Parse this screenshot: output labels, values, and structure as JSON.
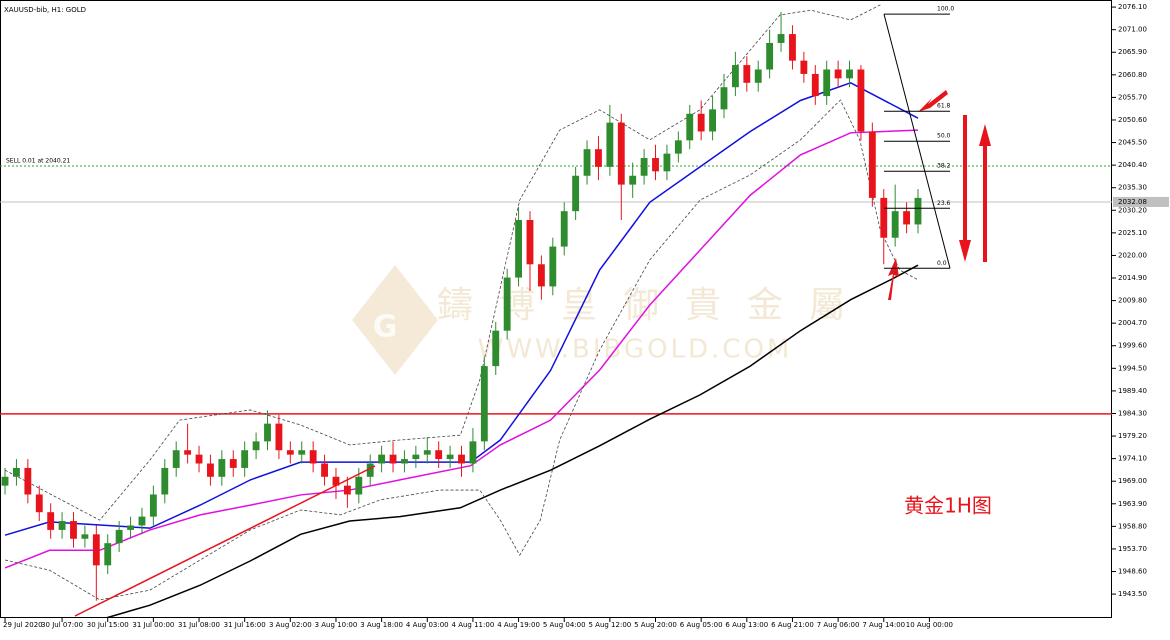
{
  "chart_data": {
    "type": "candlestick",
    "title": "XAUUSD-bib, H1:  GOLD",
    "xlim": [
      -0.44,
      97
    ],
    "ylim": [
      1938.1,
      2077.7
    ],
    "xticks": [
      {
        "value": 0,
        "label": "29 Jul 2020"
      },
      {
        "value": 5,
        "label": "30 Jul 07:00"
      },
      {
        "value": 9,
        "label": "30 Jul 15:00"
      },
      {
        "value": 13,
        "label": "31 Jul 00:00"
      },
      {
        "value": 17,
        "label": "31 Jul 08:00"
      },
      {
        "value": 21,
        "label": "31 Jul 16:00"
      },
      {
        "value": 25,
        "label": "3 Aug 02:00"
      },
      {
        "value": 29,
        "label": "3 Aug 10:00"
      },
      {
        "value": 33,
        "label": "3 Aug 18:00"
      },
      {
        "value": 37,
        "label": "4 Aug 03:00"
      },
      {
        "value": 41,
        "label": "4 Aug 11:00"
      },
      {
        "value": 45,
        "label": "4 Aug 19:00"
      },
      {
        "value": 49,
        "label": "5 Aug 04:00"
      },
      {
        "value": 53,
        "label": "5 Aug 12:00"
      },
      {
        "value": 57,
        "label": "5 Aug 20:00"
      },
      {
        "value": 61,
        "label": "6 Aug 05:00"
      },
      {
        "value": 65,
        "label": "6 Aug 13:00"
      },
      {
        "value": 69,
        "label": "6 Aug 21:00"
      },
      {
        "value": 73,
        "label": "7 Aug 06:00"
      },
      {
        "value": 77,
        "label": "7 Aug 14:00"
      },
      {
        "value": 81,
        "label": "10 Aug 00:00"
      }
    ],
    "yticks": [
      {
        "value": 2076.1,
        "label": "2076.10"
      },
      {
        "value": 2071,
        "label": "2071.00"
      },
      {
        "value": 2065.9,
        "label": "2065.90"
      },
      {
        "value": 2060.8,
        "label": "2060.80"
      },
      {
        "value": 2055.7,
        "label": "2055.70"
      },
      {
        "value": 2050.6,
        "label": "2050.60"
      },
      {
        "value": 2045.5,
        "label": "2045.50"
      },
      {
        "value": 2040.4,
        "label": "2040.40"
      },
      {
        "value": 2035.3,
        "label": "2035.30"
      },
      {
        "value": 2030.2,
        "label": "2030.20"
      },
      {
        "value": 2025.1,
        "label": "2025.10"
      },
      {
        "value": 2020,
        "label": "2020.00"
      },
      {
        "value": 2014.9,
        "label": "2014.90"
      },
      {
        "value": 2009.8,
        "label": "2009.80"
      },
      {
        "value": 2004.7,
        "label": "2004.70"
      },
      {
        "value": 1999.6,
        "label": "1999.60"
      },
      {
        "value": 1994.5,
        "label": "1994.50"
      },
      {
        "value": 1989.4,
        "label": "1989.40"
      },
      {
        "value": 1984.3,
        "label": "1984.30"
      },
      {
        "value": 1979.2,
        "label": "1979.20"
      },
      {
        "value": 1974.1,
        "label": "1974.10"
      },
      {
        "value": 1969,
        "label": "1969.00"
      },
      {
        "value": 1963.9,
        "label": "1963.90"
      },
      {
        "value": 1958.8,
        "label": "1958.80"
      },
      {
        "value": 1953.7,
        "label": "1953.70"
      },
      {
        "value": 1948.6,
        "label": "1948.60"
      },
      {
        "value": 1943.5,
        "label": "1943.50"
      }
    ],
    "up_color": "#2e8b2e",
    "down_color": "#e8141c",
    "open": [
      1968,
      1970,
      1972,
      1966,
      1962,
      1958,
      1960,
      1956,
      1957,
      1950,
      1955,
      1958,
      1959,
      1961,
      1966,
      1972,
      1976,
      1975,
      1973,
      1970,
      1974,
      1972,
      1976,
      1978,
      1982,
      1976,
      1975,
      1976,
      1973,
      1970,
      1968,
      1966,
      1970,
      1973,
      1975,
      1973,
      1974,
      1975,
      1976,
      1974,
      1975,
      1973,
      1978,
      1995,
      2003,
      2015,
      2028,
      2018,
      2013,
      2022,
      2030,
      2038,
      2044,
      2040,
      2050,
      2036,
      2038,
      2042,
      2039,
      2043,
      2046,
      2052,
      2048,
      2053,
      2058,
      2063,
      2059,
      2062,
      2068,
      2070,
      2064,
      2061,
      2056,
      2062,
      2060,
      2062,
      2048,
      2033,
      2024,
      2030,
      2027
    ],
    "high": [
      1972,
      1974,
      1974,
      1968,
      1964,
      1962,
      1962,
      1959,
      1959,
      1957,
      1960,
      1961,
      1963,
      1968,
      1974,
      1978,
      1982,
      1977,
      1975,
      1976,
      1976,
      1978,
      1980,
      1985,
      1984,
      1978,
      1978,
      1978,
      1975,
      1972,
      1970,
      1972,
      1975,
      1977,
      1978,
      1976,
      1977,
      1979,
      1978,
      1977,
      1977,
      1981,
      1997,
      2005,
      2017,
      2031,
      2030,
      2020,
      2024,
      2032,
      2040,
      2046,
      2047,
      2054,
      2052,
      2041,
      2044,
      2045,
      2045,
      2048,
      2054,
      2055,
      2056,
      2061,
      2066,
      2065,
      2064,
      2071,
      2075,
      2072,
      2066,
      2063,
      2064,
      2064,
      2064,
      2063,
      2050,
      2035,
      2036,
      2032,
      2035
    ],
    "low": [
      1966,
      1968,
      1964,
      1960,
      1956,
      1956,
      1954,
      1954,
      1942,
      1948,
      1953,
      1956,
      1957,
      1959,
      1964,
      1970,
      1973,
      1971,
      1968,
      1968,
      1970,
      1970,
      1974,
      1976,
      1974,
      1973,
      1973,
      1971,
      1968,
      1965,
      1963,
      1964,
      1968,
      1971,
      1971,
      1971,
      1972,
      1973,
      1972,
      1972,
      1970,
      1971,
      1976,
      1993,
      2001,
      2013,
      2012,
      2010,
      2011,
      2020,
      2028,
      2036,
      2037,
      2038,
      2028,
      2033,
      2036,
      2037,
      2037,
      2041,
      2044,
      2046,
      2046,
      2051,
      2056,
      2057,
      2057,
      2060,
      2066,
      2062,
      2059,
      2054,
      2054,
      2058,
      2058,
      2046,
      2031,
      2018,
      2022,
      2025,
      2025
    ],
    "close": [
      1970,
      1972,
      1966,
      1962,
      1958,
      1960,
      1956,
      1957,
      1950,
      1955,
      1958,
      1959,
      1961,
      1966,
      1972,
      1976,
      1975,
      1973,
      1970,
      1974,
      1972,
      1976,
      1978,
      1982,
      1976,
      1975,
      1976,
      1973,
      1970,
      1968,
      1966,
      1970,
      1973,
      1975,
      1973,
      1974,
      1975,
      1976,
      1974,
      1975,
      1973,
      1978,
      1995,
      2003,
      2015,
      2028,
      2018,
      2013,
      2022,
      2030,
      2038,
      2044,
      2040,
      2050,
      2036,
      2038,
      2042,
      2039,
      2043,
      2046,
      2052,
      2048,
      2053,
      2058,
      2063,
      2059,
      2062,
      2068,
      2070,
      2064,
      2061,
      2056,
      2062,
      2060,
      2062,
      2048,
      2033,
      2024,
      2030,
      2027,
      2033
    ],
    "overlays": [
      {
        "color": "#1010e0",
        "dashed": false,
        "x": [
          0,
          3.9,
          8.3,
          12.7,
          17.1,
          21.5,
          25.9,
          30.2,
          34.6,
          40.8,
          43.4,
          47.8,
          52.1,
          56.5,
          60.9,
          65.3,
          69.7,
          74.1,
          80
        ],
        "values": [
          1956.8,
          1959.8,
          1959.1,
          1958.4,
          1963.6,
          1969.3,
          1973.3,
          1973.3,
          1973.3,
          1973.3,
          1978.3,
          1994,
          2016.7,
          2032,
          2040,
          2048,
          2055,
          2059,
          2051
        ]
      },
      {
        "color": "#e010e0",
        "dashed": false,
        "x": [
          0,
          3.9,
          8.3,
          12.7,
          17.1,
          21.5,
          25.9,
          30.2,
          34.6,
          40.8,
          43.4,
          47.8,
          52.1,
          56.5,
          60.9,
          65.3,
          69.7,
          74.1,
          80
        ],
        "values": [
          1949.4,
          1953.4,
          1953.4,
          1958,
          1961.4,
          1963.6,
          1965.9,
          1967,
          1969.3,
          1972.5,
          1977.2,
          1982.8,
          1994.1,
          2008.8,
          2021.2,
          2033.6,
          2042.7,
          2047.7,
          2048.3
        ]
      },
      {
        "color": "#000000",
        "dashed": false,
        "x": [
          8.3,
          12.7,
          17.1,
          21.5,
          25.9,
          30.2,
          34.6,
          39.9,
          43.4,
          47.8,
          52.1,
          56.5,
          60.9,
          65.3,
          69.7,
          74.1,
          77.6,
          80
        ],
        "values": [
          1937.7,
          1941,
          1945.5,
          1951,
          1957,
          1960,
          1961,
          1963,
          1967,
          1971.5,
          1977,
          1983,
          1988.5,
          1995,
          2003,
          2010,
          2014.5,
          2017.8
        ]
      },
      {
        "color": "#444444",
        "dashed": true,
        "x": [
          0,
          8.3,
          12.7,
          15.3,
          21.5,
          25.9,
          30.2,
          34.6,
          39.9,
          41.6,
          45.1,
          48.6,
          52.1,
          56.5,
          60.9,
          65.3,
          67.9,
          70.6,
          74.1,
          76.7
        ],
        "values": [
          1971.5,
          1960.2,
          1973.8,
          1982.8,
          1985.1,
          1981.7,
          1977.2,
          1978.3,
          1979.4,
          1991.9,
          2032.5,
          2048.3,
          2052.9,
          2046.1,
          2052.9,
          2066.4,
          2074.3,
          2075.4,
          2073.2,
          2076.6
        ]
      },
      {
        "color": "#444444",
        "dashed": true,
        "x": [
          0,
          3.9,
          8.3,
          12.7,
          17.1,
          21.5,
          25.9,
          29.4,
          32.9,
          38.1,
          41.6,
          43.4,
          45.1,
          46.9,
          48.6,
          52.1,
          56.5,
          60.9,
          65.3,
          69.7,
          73.2,
          74.9,
          76.7,
          78.4,
          80
        ],
        "values": [
          1951.2,
          1948.9,
          1942.2,
          1944.4,
          1951.2,
          1958,
          1962.5,
          1961.4,
          1964.8,
          1967,
          1967,
          1960.2,
          1952.3,
          1960.2,
          1978.3,
          1998.6,
          2019,
          2032.5,
          2038.2,
          2046.1,
          2055.1,
          2046.1,
          2025.7,
          2016.7,
          2014.5
        ]
      }
    ],
    "order_line": {
      "label": "SELL 0.01 at 2040.21",
      "value": 2040.21,
      "color": "#2ca02c"
    },
    "current_price": {
      "value": 2032.08,
      "label": "2032.08",
      "color": "#c0c0c0"
    },
    "level_line": {
      "value": 1984.2,
      "color": "#e8141c"
    },
    "fib": {
      "high": 2074.5,
      "low": 2017.1,
      "levels": [
        {
          "value": 100,
          "label": "100.0"
        },
        61.8,
        {
          "value": 50,
          "label": "50.0"
        },
        38.2,
        23.6,
        {
          "value": 0,
          "label": "0.0"
        }
      ]
    },
    "annotation": "黄金1H图",
    "watermark": {
      "chars": [
        "鑄",
        "博",
        "皇",
        "御",
        "貴",
        "金",
        "屬"
      ],
      "site": "WWW.BIBGOLD.COM"
    }
  }
}
